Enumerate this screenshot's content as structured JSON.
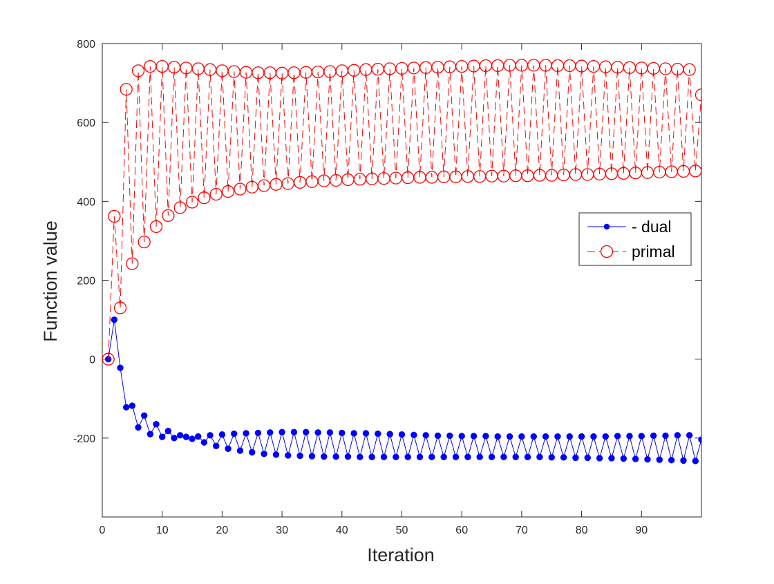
{
  "chart_data": {
    "type": "line",
    "title": "",
    "xlabel": "Iteration",
    "ylabel": "Function value",
    "xlim": [
      0,
      100
    ],
    "ylim": [
      -400,
      800
    ],
    "xticks": [
      0,
      10,
      20,
      30,
      40,
      50,
      60,
      70,
      80,
      90
    ],
    "yticks": [
      -200,
      0,
      200,
      400,
      600,
      800
    ],
    "grid": false,
    "legend_position": "right",
    "series": [
      {
        "name": "- dual",
        "color": "#0000ff",
        "line_style": "solid",
        "marker": "filled-circle",
        "x": [
          1,
          2,
          3,
          4,
          5,
          6,
          7,
          8,
          9,
          10,
          11,
          12,
          13,
          14,
          15,
          16,
          17,
          18,
          19,
          20,
          21,
          22,
          23,
          24,
          25,
          26,
          27,
          28,
          29,
          30,
          31,
          32,
          33,
          34,
          35,
          36,
          37,
          38,
          39,
          40,
          41,
          42,
          43,
          44,
          45,
          46,
          47,
          48,
          49,
          50,
          51,
          52,
          53,
          54,
          55,
          56,
          57,
          58,
          59,
          60,
          61,
          62,
          63,
          64,
          65,
          66,
          67,
          68,
          69,
          70,
          71,
          72,
          73,
          74,
          75,
          76,
          77,
          78,
          79,
          80,
          81,
          82,
          83,
          84,
          85,
          86,
          87,
          88,
          89,
          90,
          91,
          92,
          93,
          94,
          95,
          96,
          97,
          98,
          99,
          100
        ],
        "y": [
          0,
          100,
          -22,
          -122,
          -118,
          -173,
          -143,
          -190,
          -165,
          -197,
          -182,
          -200,
          -193,
          -197,
          -202,
          -196,
          -211,
          -193,
          -220,
          -191,
          -227,
          -189,
          -232,
          -188,
          -236,
          -187,
          -240,
          -186,
          -242,
          -185,
          -244,
          -185,
          -245,
          -185,
          -246,
          -186,
          -247,
          -186,
          -247,
          -187,
          -247,
          -188,
          -248,
          -188,
          -248,
          -189,
          -248,
          -190,
          -248,
          -191,
          -248,
          -192,
          -248,
          -193,
          -248,
          -194,
          -248,
          -194,
          -248,
          -195,
          -248,
          -195,
          -248,
          -195,
          -248,
          -196,
          -248,
          -196,
          -248,
          -196,
          -248,
          -196,
          -248,
          -196,
          -249,
          -196,
          -249,
          -196,
          -250,
          -196,
          -250,
          -196,
          -251,
          -196,
          -251,
          -195,
          -252,
          -195,
          -253,
          -195,
          -254,
          -194,
          -255,
          -194,
          -256,
          -193,
          -257,
          -193,
          -258,
          -204
        ]
      },
      {
        "name": "primal",
        "color": "#ff0000",
        "line_style": "dashed",
        "marker": "open-circle",
        "x": [
          1,
          2,
          3,
          4,
          5,
          6,
          7,
          8,
          9,
          10,
          11,
          12,
          13,
          14,
          15,
          16,
          17,
          18,
          19,
          20,
          21,
          22,
          23,
          24,
          25,
          26,
          27,
          28,
          29,
          30,
          31,
          32,
          33,
          34,
          35,
          36,
          37,
          38,
          39,
          40,
          41,
          42,
          43,
          44,
          45,
          46,
          47,
          48,
          49,
          50,
          51,
          52,
          53,
          54,
          55,
          56,
          57,
          58,
          59,
          60,
          61,
          62,
          63,
          64,
          65,
          66,
          67,
          68,
          69,
          70,
          71,
          72,
          73,
          74,
          75,
          76,
          77,
          78,
          79,
          80,
          81,
          82,
          83,
          84,
          85,
          86,
          87,
          88,
          89,
          90,
          91,
          92,
          93,
          94,
          95,
          96,
          97,
          98,
          99,
          100
        ],
        "y": [
          0,
          362,
          130,
          684,
          242,
          731,
          297,
          742,
          336,
          742,
          364,
          740,
          384,
          738,
          398,
          736,
          409,
          734,
          418,
          731,
          425,
          729,
          431,
          727,
          436,
          726,
          440,
          726,
          443,
          725,
          445,
          726,
          448,
          727,
          450,
          728,
          452,
          729,
          453,
          731,
          455,
          732,
          456,
          734,
          457,
          735,
          458,
          736,
          459,
          737,
          460,
          738,
          461,
          739,
          461,
          740,
          462,
          741,
          462,
          742,
          463,
          743,
          463,
          744,
          464,
          744,
          464,
          745,
          465,
          745,
          465,
          745,
          466,
          745,
          466,
          744,
          467,
          744,
          468,
          743,
          468,
          742,
          469,
          741,
          470,
          740,
          471,
          739,
          472,
          738,
          473,
          737,
          474,
          736,
          475,
          735,
          476,
          734,
          477,
          670
        ]
      }
    ]
  }
}
